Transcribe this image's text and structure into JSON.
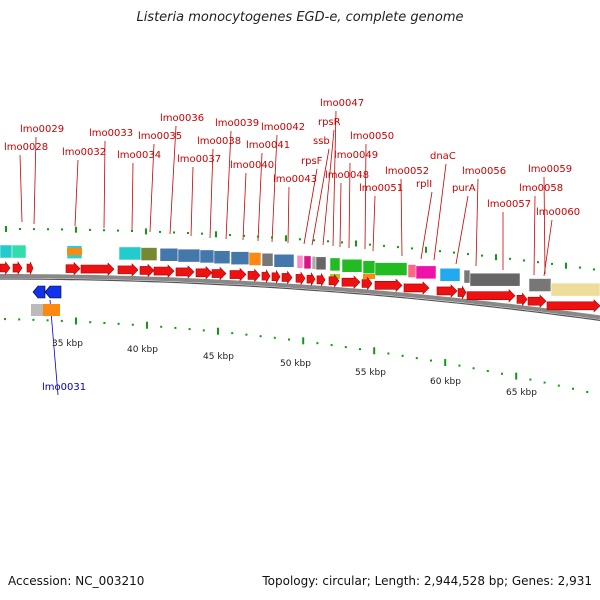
{
  "title": "Listeria monocytogenes EGD-e, complete genome",
  "footer": {
    "accession": "Accession: NC_003210",
    "topology": "Topology: circular; Length: 2,944,528 bp; Genes: 2,931"
  },
  "colors": {
    "gene_red": "#ee1111",
    "label_red": "#cc0000",
    "label_blue": "#0000cc",
    "tick_green": "#119911",
    "backbone": "#888888"
  },
  "scale_labels": [
    "35 kbp",
    "40 kbp",
    "45 kbp",
    "50 kbp",
    "55 kbp",
    "60 kbp",
    "65 kbp"
  ],
  "gene_labels": [
    {
      "id": "lmo0028",
      "text": "lmo0028"
    },
    {
      "id": "lmo0029",
      "text": "lmo0029"
    },
    {
      "id": "lmo0032",
      "text": "lmo0032"
    },
    {
      "id": "lmo0033",
      "text": "lmo0033"
    },
    {
      "id": "lmo0034",
      "text": "lmo0034"
    },
    {
      "id": "lmo0035",
      "text": "lmo0035"
    },
    {
      "id": "lmo0036",
      "text": "lmo0036"
    },
    {
      "id": "lmo0037",
      "text": "lmo0037"
    },
    {
      "id": "lmo0038",
      "text": "lmo0038"
    },
    {
      "id": "lmo0039",
      "text": "lmo0039"
    },
    {
      "id": "lmo0040",
      "text": "lmo0040"
    },
    {
      "id": "lmo0041",
      "text": "lmo0041"
    },
    {
      "id": "lmo0042",
      "text": "lmo0042"
    },
    {
      "id": "lmo0043",
      "text": "lmo0043"
    },
    {
      "id": "rpsF",
      "text": "rpsF"
    },
    {
      "id": "ssb",
      "text": "ssb"
    },
    {
      "id": "rpsR",
      "text": "rpsR"
    },
    {
      "id": "lmo0047",
      "text": "lmo0047"
    },
    {
      "id": "lmo0048",
      "text": "lmo0048"
    },
    {
      "id": "lmo0049",
      "text": "lmo0049"
    },
    {
      "id": "lmo0050",
      "text": "lmo0050"
    },
    {
      "id": "lmo0051",
      "text": "lmo0051"
    },
    {
      "id": "lmo0052",
      "text": "lmo0052"
    },
    {
      "id": "rplI",
      "text": "rplI"
    },
    {
      "id": "dnaC",
      "text": "dnaC"
    },
    {
      "id": "purA",
      "text": "purA"
    },
    {
      "id": "lmo0056",
      "text": "lmo0056"
    },
    {
      "id": "lmo0057",
      "text": "lmo0057"
    },
    {
      "id": "lmo0058",
      "text": "lmo0058"
    },
    {
      "id": "lmo0059",
      "text": "lmo0059"
    },
    {
      "id": "lmo0060",
      "text": "lmo0060"
    },
    {
      "id": "lmo0031",
      "text": "lmo0031",
      "color": "blue"
    }
  ]
}
